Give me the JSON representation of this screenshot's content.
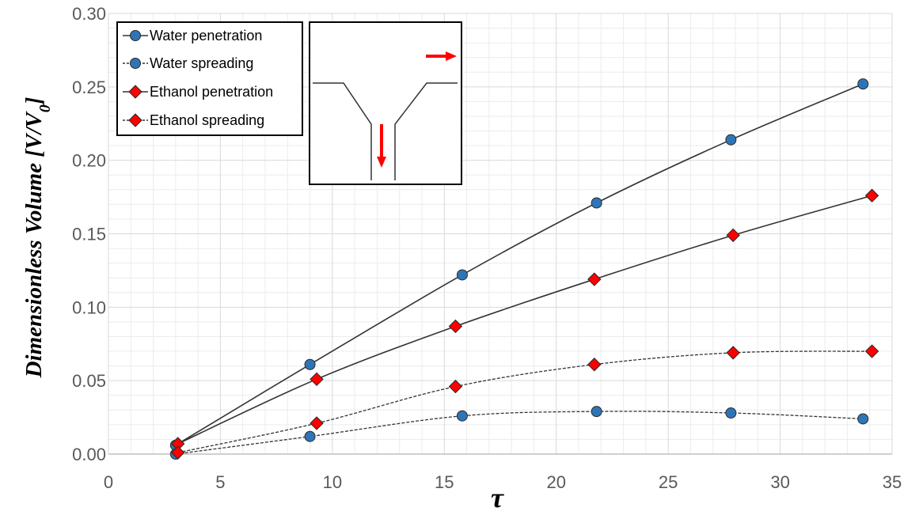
{
  "chart_data": {
    "type": "line",
    "xlabel": "τ",
    "ylabel": {
      "prefix": "Dimensionless Volume [V/V",
      "sub": "0",
      "suffix": "]"
    },
    "xlim": [
      0,
      35
    ],
    "ylim": [
      0,
      0.3
    ],
    "x_ticks": [
      "0",
      "5",
      "10",
      "15",
      "20",
      "25",
      "30",
      "35"
    ],
    "y_ticks": [
      "0.00",
      "0.05",
      "0.10",
      "0.15",
      "0.20",
      "0.25",
      "0.30"
    ],
    "grid": true,
    "legend_position": "top-left",
    "series": [
      {
        "name": "Water penetration",
        "marker": "circle",
        "line": "solid",
        "color": "#2E75B6",
        "x": [
          3.0,
          9.0,
          15.8,
          21.8,
          27.8,
          33.7
        ],
        "y": [
          0.006,
          0.061,
          0.122,
          0.171,
          0.214,
          0.252
        ]
      },
      {
        "name": "Water spreading",
        "marker": "circle",
        "line": "dashed",
        "color": "#2E75B6",
        "x": [
          3.0,
          9.0,
          15.8,
          21.8,
          27.8,
          33.7
        ],
        "y": [
          0.0,
          0.012,
          0.026,
          0.029,
          0.028,
          0.024
        ]
      },
      {
        "name": "Ethanol penetration",
        "marker": "diamond",
        "line": "solid",
        "color": "#FF0000",
        "x": [
          3.1,
          9.3,
          15.5,
          21.7,
          27.9,
          34.1
        ],
        "y": [
          0.007,
          0.051,
          0.087,
          0.119,
          0.149,
          0.176
        ]
      },
      {
        "name": "Ethanol spreading",
        "marker": "diamond",
        "line": "dashed",
        "color": "#FF0000",
        "x": [
          3.1,
          9.3,
          15.5,
          21.7,
          27.9,
          34.1
        ],
        "y": [
          0.001,
          0.021,
          0.046,
          0.061,
          0.069,
          0.07
        ]
      }
    ]
  },
  "inset": {
    "arrow_color": "#FF0000"
  }
}
